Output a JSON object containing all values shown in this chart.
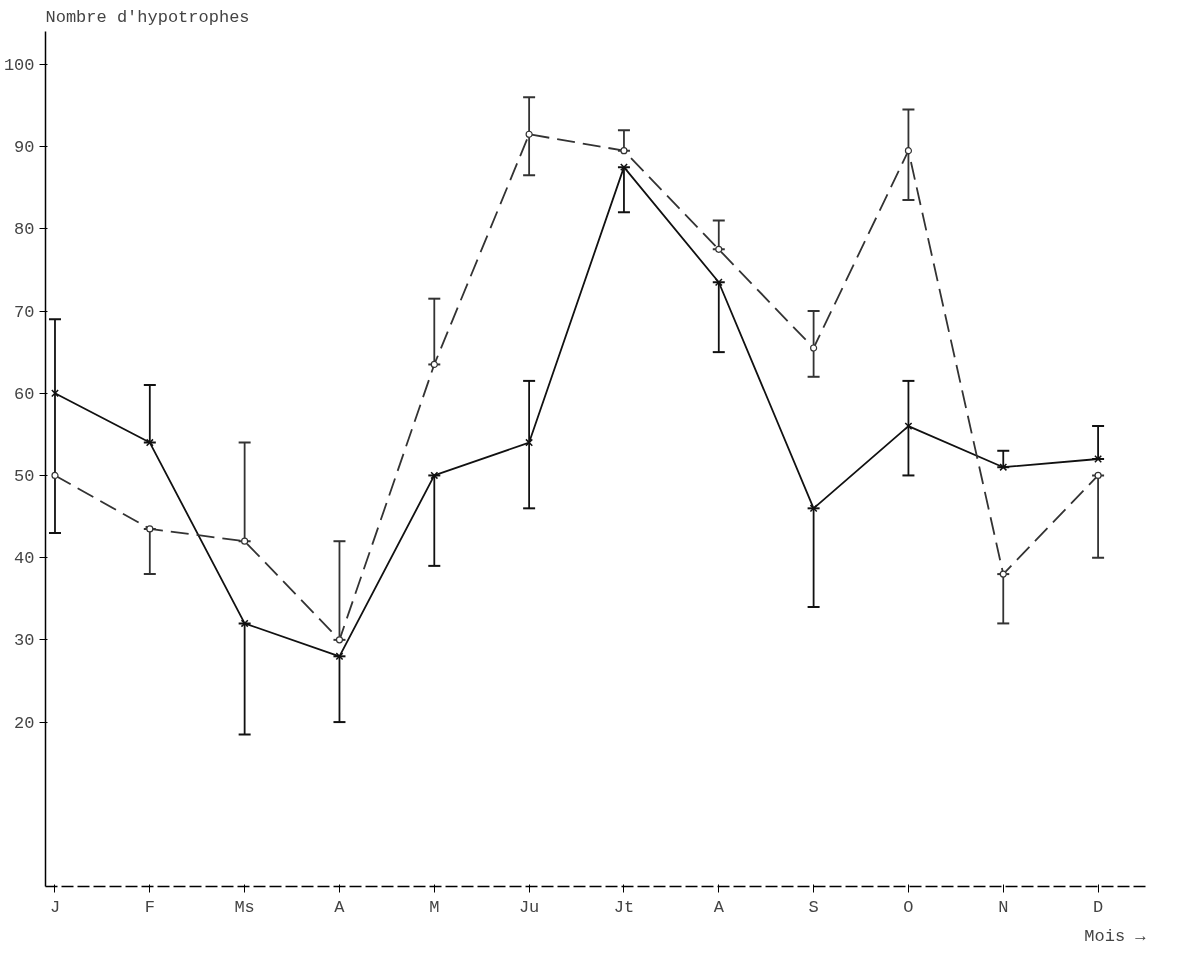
{
  "chart_data": {
    "type": "line",
    "ylabel": "Nombre d'hypotrophes",
    "xlabel": "Mois →",
    "categories": [
      "J",
      "F",
      "Ms",
      "A",
      "M",
      "Ju",
      "Jt",
      "A",
      "S",
      "O",
      "N",
      "D"
    ],
    "ylim": [
      0,
      104
    ],
    "yticks": [
      20,
      30,
      40,
      50,
      60,
      70,
      80,
      90,
      100
    ],
    "grid": false,
    "series": [
      {
        "color": "#111111",
        "marker": "cross",
        "line_style": "solid",
        "values": [
          60,
          54,
          32,
          28,
          50,
          54,
          87.5,
          73.5,
          46,
          56,
          51,
          52
        ],
        "errors": [
          [
            43,
            69
          ],
          [
            54,
            61
          ],
          [
            18.5,
            32
          ],
          [
            20,
            28
          ],
          [
            39,
            50
          ],
          [
            46,
            61.5
          ],
          [
            82,
            87.5
          ],
          [
            65,
            73.5
          ],
          [
            34,
            46
          ],
          [
            50,
            61.5
          ],
          [
            51,
            53
          ],
          [
            52,
            56
          ]
        ]
      },
      {
        "color": "#333333",
        "marker": "circle",
        "line_style": "dashed",
        "values": [
          50,
          43.5,
          42,
          30,
          63.5,
          91.5,
          89.5,
          77.5,
          65.5,
          89.5,
          38,
          50
        ],
        "errors": [
          [
            50,
            50
          ],
          [
            38,
            43.5
          ],
          [
            42,
            54
          ],
          [
            30,
            42
          ],
          [
            63.5,
            71.5
          ],
          [
            86.5,
            96
          ],
          [
            89.5,
            92
          ],
          [
            77.5,
            81
          ],
          [
            62,
            70
          ],
          [
            83.5,
            94.5
          ],
          [
            32,
            38
          ],
          [
            40,
            50
          ]
        ]
      }
    ]
  }
}
